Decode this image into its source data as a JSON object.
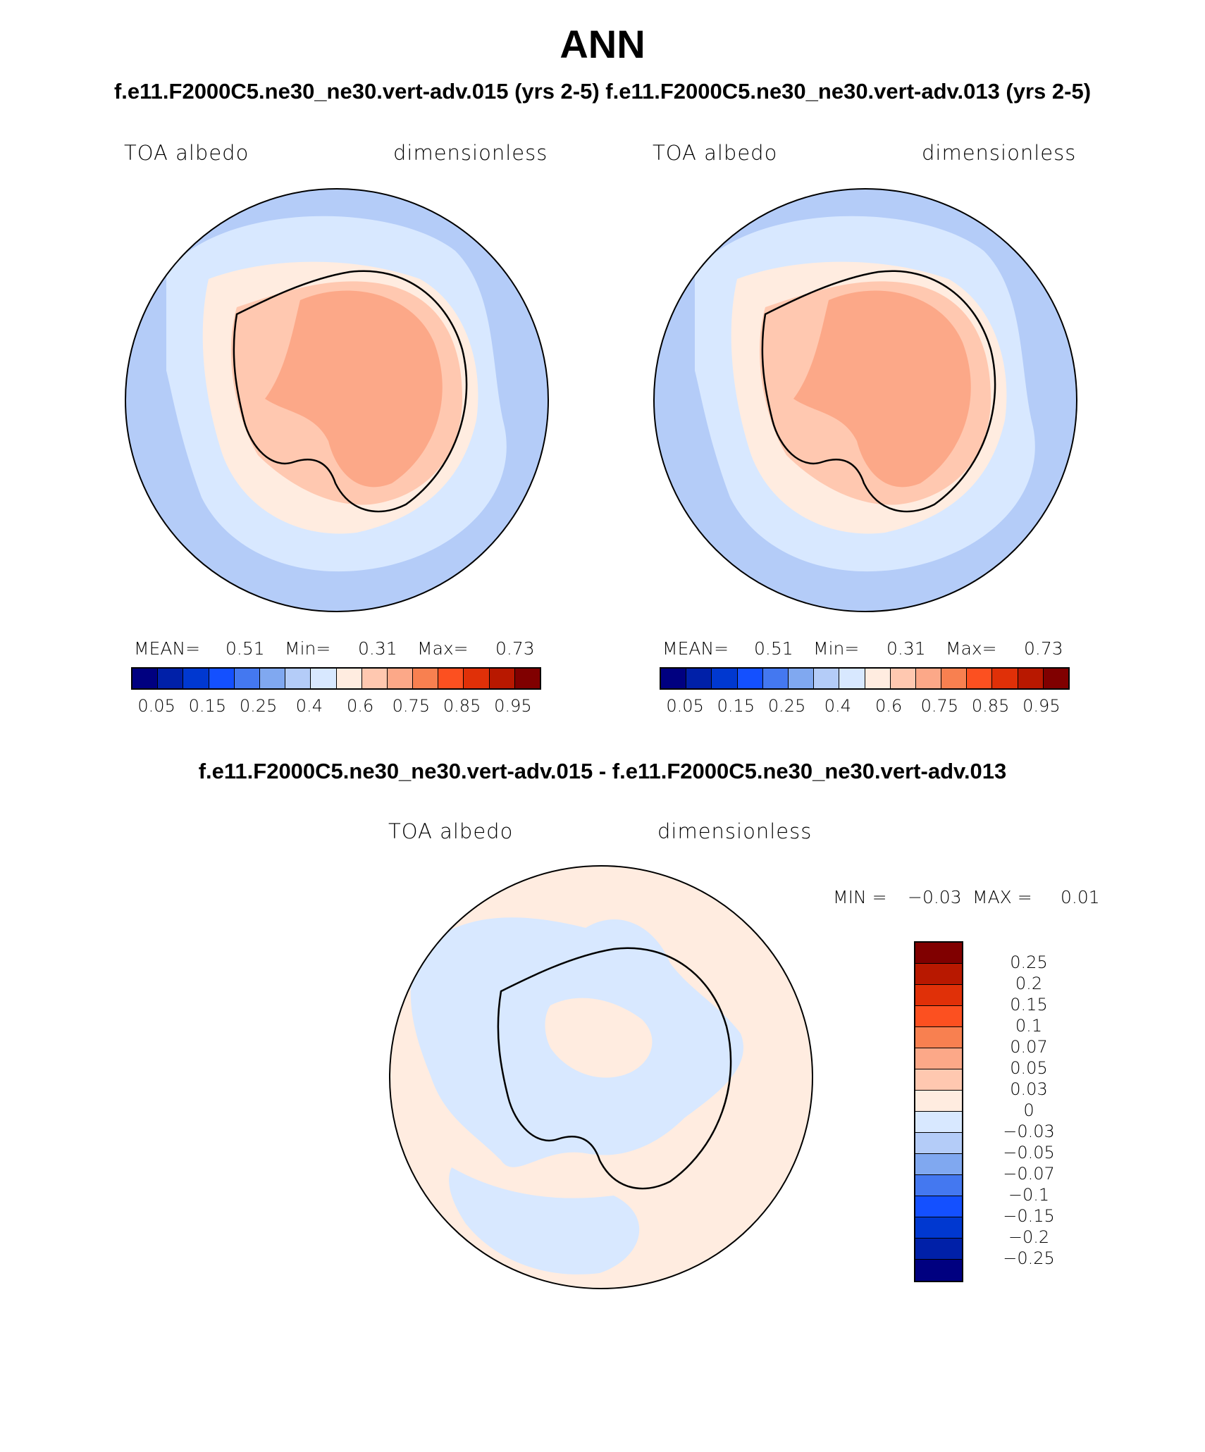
{
  "figure": {
    "title": "ANN",
    "case_titles": "f.e11.F2000C5.ne30_ne30.vert-adv.015 (yrs 2-5) f.e11.F2000C5.ne30_ne30.vert-adv.013 (yrs 2-5)",
    "diff_title": "f.e11.F2000C5.ne30_ne30.vert-adv.015 - f.e11.F2000C5.ne30_ne30.vert-adv.013"
  },
  "panels": [
    {
      "variable": "TOA albedo",
      "units": "dimensionless",
      "mean_label": "MEAN=",
      "mean_value": "0.51",
      "min_label": "Min=",
      "min_value": "0.31",
      "max_label": "Max=",
      "max_value": "0.73"
    },
    {
      "variable": "TOA albedo",
      "units": "dimensionless",
      "mean_label": "MEAN=",
      "mean_value": "0.51",
      "min_label": "Min=",
      "min_value": "0.31",
      "max_label": "Max=",
      "max_value": "0.73"
    }
  ],
  "diff_panel": {
    "variable": "TOA albedo",
    "units": "dimensionless",
    "min_label": "MIN =",
    "min_value": "−0.03",
    "max_label": "MAX =",
    "max_value": "0.01"
  },
  "colorbar": {
    "colors": [
      "#000080",
      "#0020a8",
      "#0038d0",
      "#1450ff",
      "#4478f0",
      "#80a8f0",
      "#b4ccf8",
      "#d8e8ff",
      "#ffece0",
      "#ffc8b0",
      "#fca888",
      "#f88050",
      "#fc5020",
      "#e03008",
      "#b81800",
      "#800000"
    ],
    "ticks": [
      "0.05",
      "0.15",
      "0.25",
      "0.4",
      "0.6",
      "0.75",
      "0.85",
      "0.95"
    ]
  },
  "diff_colorbar": {
    "colors_top_to_bottom": [
      "#800000",
      "#b81800",
      "#e03008",
      "#fc5020",
      "#f88050",
      "#fca888",
      "#ffc8b0",
      "#ffece0",
      "#d8e8ff",
      "#b4ccf8",
      "#80a8f0",
      "#4478f0",
      "#1450ff",
      "#0038d0",
      "#0020a8",
      "#000080"
    ],
    "ticks_top_to_bottom": [
      "0.25",
      "0.2",
      "0.15",
      "0.1",
      "0.07",
      "0.05",
      "0.03",
      "0",
      "−0.03",
      "−0.05",
      "−0.07",
      "−0.1",
      "−0.15",
      "−0.2",
      "−0.25"
    ]
  },
  "map_colors": {
    "ocean_outer": "#b4ccf8",
    "ocean_inner": "#d8e8ff",
    "ice_edge": "#ffece0",
    "continent_outer": "#ffc8b0",
    "continent_inner": "#fca888",
    "diff_positive": "#ffece0",
    "diff_negative": "#d8e8ff"
  }
}
